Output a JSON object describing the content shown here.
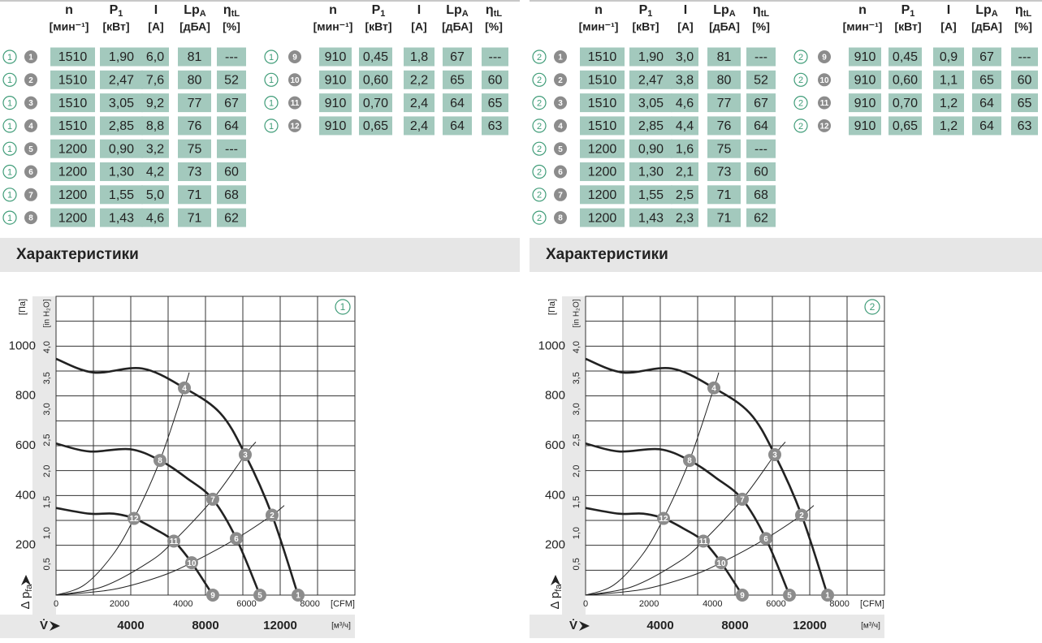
{
  "tables": [
    {
      "mode": "1",
      "section_title": "Характеристики",
      "blocks": [
        {
          "headers": [
            {
              "label": "n",
              "unit": "[мин⁻¹]"
            },
            {
              "label": "P",
              "sub": "1",
              "unit": "[кВт]"
            },
            {
              "label": "I",
              "unit": "[A]"
            },
            {
              "label": "Lp",
              "sub": "A",
              "unit": "[дБА]"
            },
            {
              "label": "η",
              "sub": "tL",
              "unit": "[%]"
            }
          ],
          "rows": [
            {
              "point": "1",
              "values": [
                "1510",
                "1,90",
                "6,0",
                "81",
                "---"
              ]
            },
            {
              "point": "2",
              "values": [
                "1510",
                "2,47",
                "7,6",
                "80",
                "52"
              ]
            },
            {
              "point": "3",
              "values": [
                "1510",
                "3,05",
                "9,2",
                "77",
                "67"
              ]
            },
            {
              "point": "4",
              "values": [
                "1510",
                "2,85",
                "8,8",
                "76",
                "64"
              ]
            },
            {
              "point": "5",
              "values": [
                "1200",
                "0,90",
                "3,2",
                "75",
                "---"
              ]
            },
            {
              "point": "6",
              "values": [
                "1200",
                "1,30",
                "4,2",
                "73",
                "60"
              ]
            },
            {
              "point": "7",
              "values": [
                "1200",
                "1,55",
                "5,0",
                "71",
                "68"
              ]
            },
            {
              "point": "8",
              "values": [
                "1200",
                "1,43",
                "4,6",
                "71",
                "62"
              ]
            }
          ]
        },
        {
          "headers": [
            {
              "label": "n",
              "unit": "[мин⁻¹]"
            },
            {
              "label": "P",
              "sub": "1",
              "unit": "[кВт]"
            },
            {
              "label": "I",
              "unit": "[A]"
            },
            {
              "label": "Lp",
              "sub": "A",
              "unit": "[дБА]"
            },
            {
              "label": "η",
              "sub": "tL",
              "unit": "[%]"
            }
          ],
          "rows": [
            {
              "point": "9",
              "values": [
                "910",
                "0,45",
                "1,8",
                "67",
                "---"
              ]
            },
            {
              "point": "10",
              "values": [
                "910",
                "0,60",
                "2,2",
                "65",
                "60"
              ]
            },
            {
              "point": "11",
              "values": [
                "910",
                "0,70",
                "2,4",
                "64",
                "65"
              ]
            },
            {
              "point": "12",
              "values": [
                "910",
                "0,65",
                "2,4",
                "64",
                "63"
              ]
            }
          ]
        }
      ]
    },
    {
      "mode": "2",
      "section_title": "Характеристики",
      "blocks": [
        {
          "headers": [
            {
              "label": "n",
              "unit": "[мин⁻¹]"
            },
            {
              "label": "P",
              "sub": "1",
              "unit": "[кВт]"
            },
            {
              "label": "I",
              "unit": "[A]"
            },
            {
              "label": "Lp",
              "sub": "A",
              "unit": "[дБА]"
            },
            {
              "label": "η",
              "sub": "tL",
              "unit": "[%]"
            }
          ],
          "rows": [
            {
              "point": "1",
              "values": [
                "1510",
                "1,90",
                "3,0",
                "81",
                "---"
              ]
            },
            {
              "point": "2",
              "values": [
                "1510",
                "2,47",
                "3,8",
                "80",
                "52"
              ]
            },
            {
              "point": "3",
              "values": [
                "1510",
                "3,05",
                "4,6",
                "77",
                "67"
              ]
            },
            {
              "point": "4",
              "values": [
                "1510",
                "2,85",
                "4,4",
                "76",
                "64"
              ]
            },
            {
              "point": "5",
              "values": [
                "1200",
                "0,90",
                "1,6",
                "75",
                "---"
              ]
            },
            {
              "point": "6",
              "values": [
                "1200",
                "1,30",
                "2,1",
                "73",
                "60"
              ]
            },
            {
              "point": "7",
              "values": [
                "1200",
                "1,55",
                "2,5",
                "71",
                "68"
              ]
            },
            {
              "point": "8",
              "values": [
                "1200",
                "1,43",
                "2,3",
                "71",
                "62"
              ]
            }
          ]
        },
        {
          "headers": [
            {
              "label": "n",
              "unit": "[мин⁻¹]"
            },
            {
              "label": "P",
              "sub": "1",
              "unit": "[кВт]"
            },
            {
              "label": "I",
              "unit": "[A]"
            },
            {
              "label": "Lp",
              "sub": "A",
              "unit": "[дБА]"
            },
            {
              "label": "η",
              "sub": "tL",
              "unit": "[%]"
            }
          ],
          "rows": [
            {
              "point": "9",
              "values": [
                "910",
                "0,45",
                "0,9",
                "67",
                "---"
              ]
            },
            {
              "point": "10",
              "values": [
                "910",
                "0,60",
                "1,1",
                "65",
                "60"
              ]
            },
            {
              "point": "11",
              "values": [
                "910",
                "0,70",
                "1,2",
                "64",
                "65"
              ]
            },
            {
              "point": "12",
              "values": [
                "910",
                "0,65",
                "1,2",
                "64",
                "63"
              ]
            }
          ]
        }
      ]
    }
  ],
  "chart_data": [
    {
      "type": "line",
      "mode": "1",
      "y_label": "Δ p",
      "y_label_sub": "fa",
      "y_unit": "[Па]",
      "y2_unit": "[in H₂O]",
      "x_label": "V̇",
      "x_unit": "[м³/ч]",
      "x2_unit": "[CFM]",
      "xlim": [
        0,
        16000
      ],
      "xticks": [
        4000,
        8000,
        12000
      ],
      "xgrid": [
        2000,
        4000,
        6000,
        8000,
        10000,
        12000,
        14000
      ],
      "x2lim": [
        0,
        9417
      ],
      "x2ticks": [
        0,
        2000,
        4000,
        6000,
        8000
      ],
      "ylim": [
        0,
        1200
      ],
      "yticks": [
        200,
        400,
        600,
        800,
        1000
      ],
      "ygrid": [
        100,
        200,
        300,
        400,
        500,
        600,
        700,
        800,
        900,
        1000,
        1100
      ],
      "y2lim": [
        0,
        4.82
      ],
      "y2ticks": [
        {
          "value": 0.5,
          "label": "0,5"
        },
        {
          "value": 1.0,
          "label": "1,0"
        },
        {
          "value": 1.5,
          "label": "1,5"
        },
        {
          "value": 2.0,
          "label": "2,0"
        },
        {
          "value": 2.5,
          "label": "2,5"
        },
        {
          "value": 3.0,
          "label": "3,0"
        },
        {
          "value": 3.5,
          "label": "3,5"
        },
        {
          "value": 4.0,
          "label": "4,0"
        }
      ],
      "fan_curves": [
        {
          "color": "#222222",
          "x": [
            0,
            2000,
            4609,
            6870,
            8800,
            10130,
            11565,
            12957
          ],
          "y": [
            949,
            894,
            910,
            832,
            730,
            564,
            321,
            0
          ]
        },
        {
          "color": "#222222",
          "x": [
            0,
            1783,
            3957,
            5565,
            7000,
            8391,
            9652,
            10913
          ],
          "y": [
            609,
            577,
            586,
            541,
            470,
            385,
            227,
            0
          ]
        },
        {
          "color": "#222222",
          "x": [
            0,
            1783,
            3087,
            4174,
            5300,
            6304,
            7261,
            8391
          ],
          "y": [
            350,
            327,
            327,
            308,
            265,
            217,
            130,
            0
          ]
        }
      ],
      "system_curves": [
        {
          "color": "#222222",
          "x": [
            0,
            1500,
            3000,
            4174,
            5565,
            6870,
            7130
          ],
          "y": [
            0,
            40,
            158,
            308,
            541,
            832,
            894
          ]
        },
        {
          "color": "#222222",
          "x": [
            0,
            2500,
            5000,
            6304,
            8391,
            10130,
            10696
          ],
          "y": [
            0,
            34,
            134,
            217,
            385,
            564,
            615
          ]
        },
        {
          "color": "#222222",
          "x": [
            0,
            3000,
            5500,
            7261,
            9652,
            11565,
            12217
          ],
          "y": [
            0,
            22,
            73,
            130,
            227,
            321,
            360
          ]
        }
      ],
      "points": {
        "labels": [
          "1",
          "2",
          "3",
          "4",
          "5",
          "6",
          "7",
          "8",
          "9",
          "10",
          "11",
          "12"
        ],
        "x": [
          12957,
          11565,
          10130,
          6870,
          10913,
          9652,
          8391,
          5565,
          8391,
          7261,
          6304,
          4174
        ],
        "y": [
          0,
          321,
          564,
          832,
          0,
          227,
          385,
          541,
          0,
          130,
          217,
          308
        ]
      }
    },
    {
      "type": "line",
      "mode": "2",
      "y_label": "Δ p",
      "y_label_sub": "fa",
      "y_unit": "[Па]",
      "y2_unit": "[in H₂O]",
      "x_label": "V̇",
      "x_unit": "[м³/ч]",
      "x2_unit": "[CFM]",
      "xlim": [
        0,
        16000
      ],
      "xticks": [
        4000,
        8000,
        12000
      ],
      "xgrid": [
        2000,
        4000,
        6000,
        8000,
        10000,
        12000,
        14000
      ],
      "x2lim": [
        0,
        9417
      ],
      "x2ticks": [
        0,
        2000,
        4000,
        6000,
        8000
      ],
      "ylim": [
        0,
        1200
      ],
      "yticks": [
        200,
        400,
        600,
        800,
        1000
      ],
      "ygrid": [
        100,
        200,
        300,
        400,
        500,
        600,
        700,
        800,
        900,
        1000,
        1100
      ],
      "y2lim": [
        0,
        4.82
      ],
      "y2ticks": [
        {
          "value": 0.5,
          "label": "0,5"
        },
        {
          "value": 1.0,
          "label": "1,0"
        },
        {
          "value": 1.5,
          "label": "1,5"
        },
        {
          "value": 2.0,
          "label": "2,0"
        },
        {
          "value": 2.5,
          "label": "2,5"
        },
        {
          "value": 3.0,
          "label": "3,0"
        },
        {
          "value": 3.5,
          "label": "3,5"
        },
        {
          "value": 4.0,
          "label": "4,0"
        }
      ],
      "fan_curves": [
        {
          "color": "#222222",
          "x": [
            0,
            2000,
            4609,
            6870,
            8800,
            10130,
            11565,
            12957
          ],
          "y": [
            949,
            894,
            910,
            832,
            730,
            564,
            321,
            0
          ]
        },
        {
          "color": "#222222",
          "x": [
            0,
            1783,
            3957,
            5565,
            7000,
            8391,
            9652,
            10913
          ],
          "y": [
            609,
            577,
            586,
            541,
            470,
            385,
            227,
            0
          ]
        },
        {
          "color": "#222222",
          "x": [
            0,
            1783,
            3087,
            4174,
            5300,
            6304,
            7261,
            8391
          ],
          "y": [
            350,
            327,
            327,
            308,
            265,
            217,
            130,
            0
          ]
        }
      ],
      "system_curves": [
        {
          "color": "#222222",
          "x": [
            0,
            1500,
            3000,
            4174,
            5565,
            6870,
            7130
          ],
          "y": [
            0,
            40,
            158,
            308,
            541,
            832,
            894
          ]
        },
        {
          "color": "#222222",
          "x": [
            0,
            2500,
            5000,
            6304,
            8391,
            10130,
            10696
          ],
          "y": [
            0,
            34,
            134,
            217,
            385,
            564,
            615
          ]
        },
        {
          "color": "#222222",
          "x": [
            0,
            3000,
            5500,
            7261,
            9652,
            11565,
            12217
          ],
          "y": [
            0,
            22,
            73,
            130,
            227,
            321,
            360
          ]
        }
      ],
      "points": {
        "labels": [
          "1",
          "2",
          "3",
          "4",
          "5",
          "6",
          "7",
          "8",
          "9",
          "10",
          "11",
          "12"
        ],
        "x": [
          12957,
          11565,
          10130,
          6870,
          10913,
          9652,
          8391,
          5565,
          8391,
          7261,
          6304,
          4174
        ],
        "y": [
          0,
          321,
          564,
          832,
          0,
          227,
          385,
          541,
          0,
          130,
          217,
          308
        ]
      }
    }
  ]
}
